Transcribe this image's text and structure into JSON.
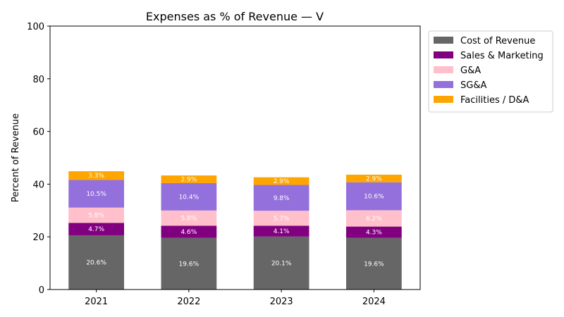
{
  "chart_data": {
    "type": "bar",
    "stacked": true,
    "title": "Expenses as % of Revenue — V",
    "xlabel": "",
    "ylabel": "Percent of Revenue",
    "ylim": [
      0,
      100
    ],
    "yticks": [
      0,
      20,
      40,
      60,
      80,
      100
    ],
    "categories": [
      "2021",
      "2022",
      "2023",
      "2024"
    ],
    "legend_position": "outside-top-right",
    "series": [
      {
        "name": "Cost of Revenue",
        "color": "#666666",
        "values": [
          20.6,
          19.6,
          20.1,
          19.6
        ],
        "labels": [
          "20.6%",
          "19.6%",
          "20.1%",
          "19.6%"
        ]
      },
      {
        "name": "Sales & Marketing",
        "color": "#800080",
        "values": [
          4.7,
          4.6,
          4.1,
          4.3
        ],
        "labels": [
          "4.7%",
          "4.6%",
          "4.1%",
          "4.3%"
        ]
      },
      {
        "name": "G&A",
        "color": "#ffc0cb",
        "values": [
          5.8,
          5.8,
          5.7,
          6.2
        ],
        "labels": [
          "5.8%",
          "5.8%",
          "5.7%",
          "6.2%"
        ]
      },
      {
        "name": "SG&A",
        "color": "#9370db",
        "values": [
          10.5,
          10.4,
          9.8,
          10.6
        ],
        "labels": [
          "10.5%",
          "10.4%",
          "9.8%",
          "10.6%"
        ]
      },
      {
        "name": "Facilities / D&A",
        "color": "#ffa500",
        "values": [
          3.3,
          2.9,
          2.9,
          2.9
        ],
        "labels": [
          "3.3%",
          "2.9%",
          "2.9%",
          "2.9%"
        ]
      }
    ]
  }
}
